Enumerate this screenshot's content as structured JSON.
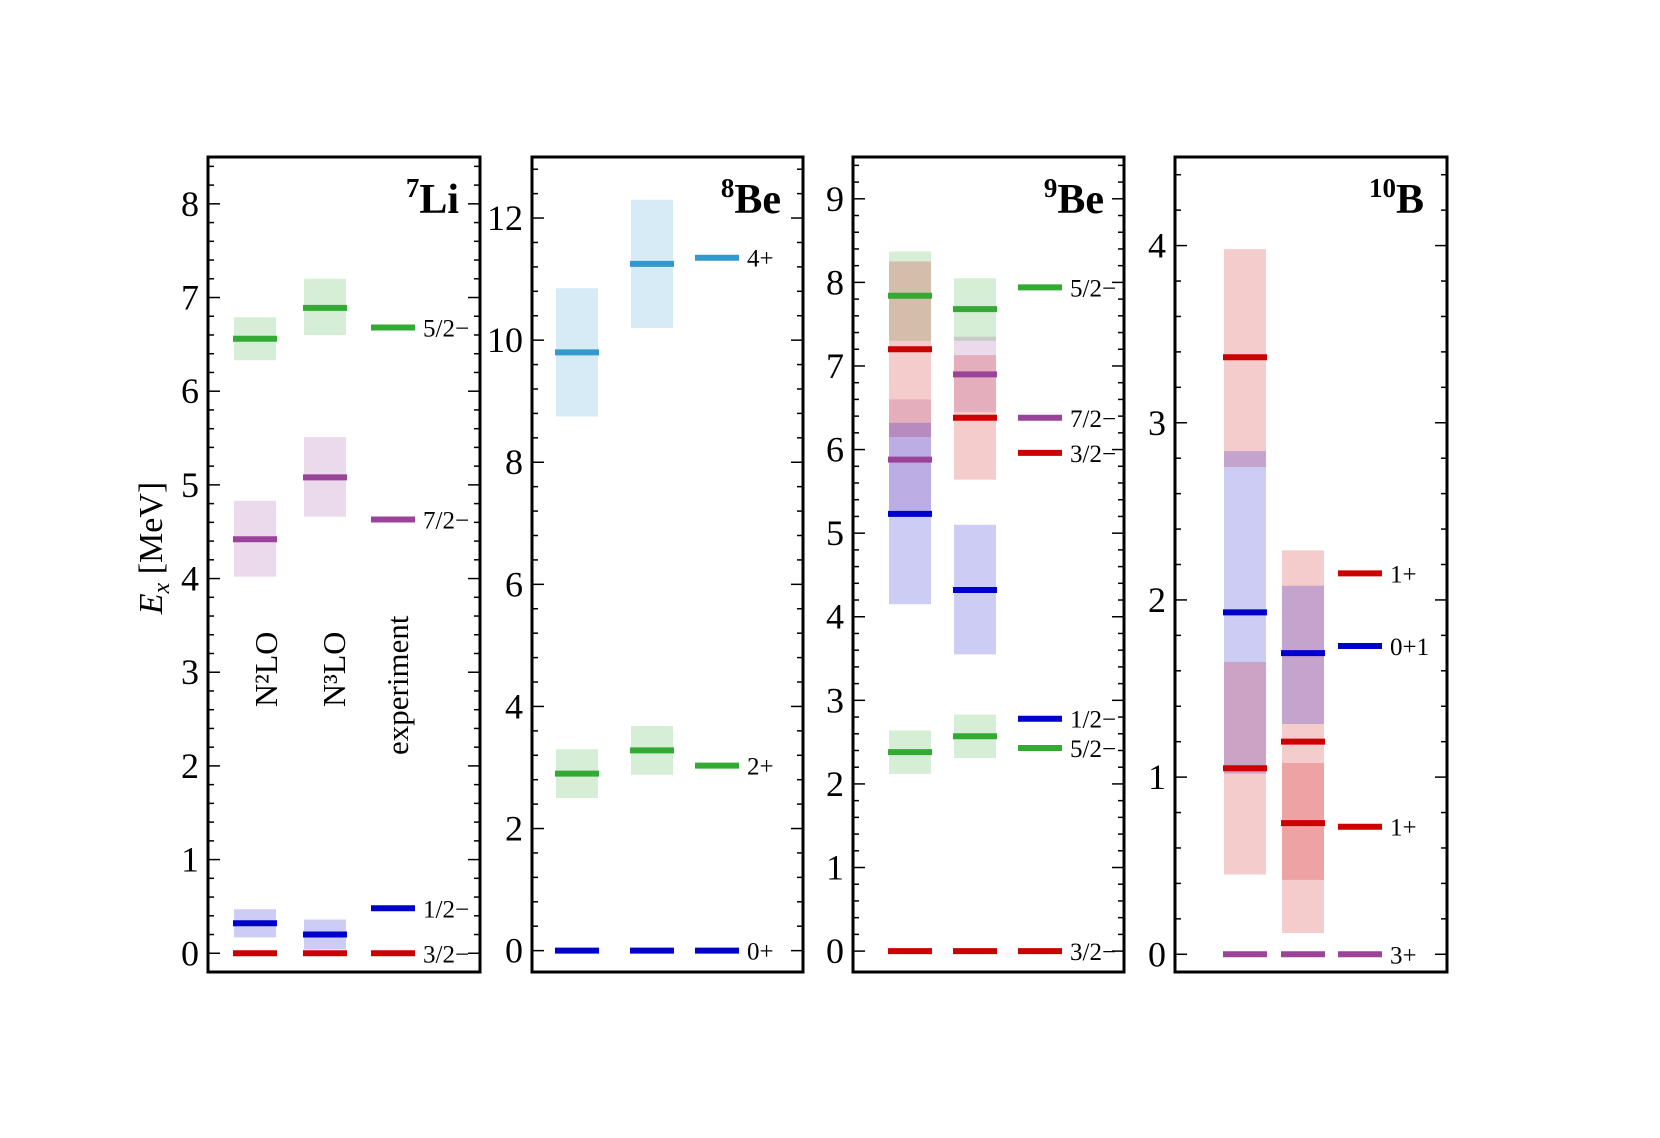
{
  "figure": {
    "ylabel_main": "E",
    "ylabel_sub": "x",
    "ylabel_unit": " [MeV]",
    "column_labels": [
      "N²LO",
      "N³LO",
      "experiment"
    ]
  },
  "chart_data": [
    {
      "type": "level-scheme",
      "panel": "7Li",
      "title_mass": "7",
      "title_symbol": "Li",
      "ylim": [
        -0.2,
        8.5
      ],
      "yticks": [
        0,
        1,
        2,
        3,
        4,
        5,
        6,
        7,
        8
      ],
      "columns": [
        "N²LO",
        "N³LO",
        "experiment"
      ],
      "levels": [
        {
          "label": "5/2−",
          "color": "#33aa33",
          "values": [
            6.56,
            6.89,
            6.68
          ],
          "bands": [
            [
              6.33,
              6.79
            ],
            [
              6.6,
              7.2
            ],
            null
          ]
        },
        {
          "label": "7/2−",
          "color": "#994499",
          "values": [
            4.42,
            5.08,
            4.63
          ],
          "bands": [
            [
              4.02,
              4.83
            ],
            [
              4.66,
              5.51
            ],
            null
          ]
        },
        {
          "label": "1/2−",
          "color": "#0000cc",
          "values": [
            0.32,
            0.2,
            0.48
          ],
          "bands": [
            [
              0.17,
              0.47
            ],
            [
              0.04,
              0.36
            ],
            null
          ]
        },
        {
          "label": "3/2−",
          "color": "#cc0000",
          "values": [
            0.0,
            0.0,
            0.0
          ],
          "bands": [
            null,
            null,
            null
          ]
        }
      ]
    },
    {
      "type": "level-scheme",
      "panel": "8Be",
      "title_mass": "8",
      "title_symbol": "Be",
      "ylim": [
        -0.35,
        13.0
      ],
      "yticks": [
        0,
        2,
        4,
        6,
        8,
        10,
        12
      ],
      "columns": [
        "N²LO",
        "N³LO",
        "experiment"
      ],
      "levels": [
        {
          "label": "4+",
          "color": "#3399cc",
          "values": [
            9.8,
            11.25,
            11.35
          ],
          "bands": [
            [
              8.75,
              10.85
            ],
            [
              10.2,
              12.3
            ],
            null
          ]
        },
        {
          "label": "2+",
          "color": "#33aa33",
          "values": [
            2.9,
            3.28,
            3.03
          ],
          "bands": [
            [
              2.5,
              3.3
            ],
            [
              2.88,
              3.68
            ],
            null
          ]
        },
        {
          "label": "0+",
          "color": "#0000cc",
          "values": [
            0.0,
            0.0,
            0.0
          ],
          "bands": [
            null,
            null,
            null
          ]
        }
      ]
    },
    {
      "type": "level-scheme",
      "panel": "9Be",
      "title_mass": "9",
      "title_symbol": "Be",
      "ylim": [
        -0.25,
        9.5
      ],
      "yticks": [
        0,
        1,
        2,
        3,
        4,
        5,
        6,
        7,
        8,
        9
      ],
      "columns": [
        "N²LO",
        "N³LO",
        "experiment"
      ],
      "levels": [
        {
          "label": "5/2−",
          "color": "#33aa33",
          "values": [
            7.84,
            7.68,
            7.94
          ],
          "bands": [
            [
              7.3,
              8.37
            ],
            [
              7.3,
              8.05
            ],
            null
          ]
        },
        {
          "label": "7/2−",
          "color": "#994499",
          "values": [
            5.88,
            6.9,
            6.38
          ],
          "bands": [
            [
              5.2,
              6.6
            ],
            [
              6.45,
              7.35
            ],
            null
          ]
        },
        {
          "label": "3/2−",
          "color": "#cc0000",
          "values": [
            7.2,
            6.38,
            5.96
          ],
          "bands": [
            [
              6.15,
              8.25
            ],
            [
              5.64,
              7.13
            ],
            null
          ]
        },
        {
          "label": "1/2−",
          "color": "#0000cc",
          "values": [
            5.23,
            4.32,
            2.78
          ],
          "bands": [
            [
              4.15,
              6.32
            ],
            [
              3.55,
              5.1
            ],
            null
          ]
        },
        {
          "label": "5/2−",
          "color": "#33aa33",
          "values": [
            2.38,
            2.57,
            2.43
          ],
          "bands": [
            [
              2.12,
              2.64
            ],
            [
              2.31,
              2.83
            ],
            null
          ]
        },
        {
          "label": "3/2−",
          "color": "#cc0000",
          "values": [
            0.0,
            0.0,
            0.0
          ],
          "bands": [
            null,
            null,
            null
          ]
        }
      ]
    },
    {
      "type": "level-scheme",
      "panel": "10B",
      "title_mass": "10",
      "title_symbol": "B",
      "ylim": [
        -0.1,
        4.5
      ],
      "yticks": [
        0,
        1,
        2,
        3,
        4
      ],
      "columns": [
        "N²LO",
        "N³LO",
        "experiment"
      ],
      "levels": [
        {
          "label": "1+",
          "color": "#cc0000",
          "values": [
            3.37,
            1.2,
            2.15
          ],
          "bands": [
            [
              2.75,
              3.98
            ],
            [
              0.42,
              2.28
            ],
            null
          ]
        },
        {
          "label": "0+1",
          "color": "#0000cc",
          "values": [
            1.93,
            1.7,
            1.74
          ],
          "bands": [
            [
              1.02,
              2.84
            ],
            [
              1.3,
              2.08
            ],
            null
          ]
        },
        {
          "label": "1+",
          "color": "#cc0000",
          "values": [
            1.05,
            0.74,
            0.72
          ],
          "bands": [
            [
              0.45,
              1.65
            ],
            [
              0.12,
              1.08
            ],
            null
          ]
        },
        {
          "label": "3+",
          "color": "#994499",
          "values": [
            0.0,
            0.0,
            0.0
          ],
          "bands": [
            null,
            null,
            null
          ]
        }
      ]
    }
  ]
}
